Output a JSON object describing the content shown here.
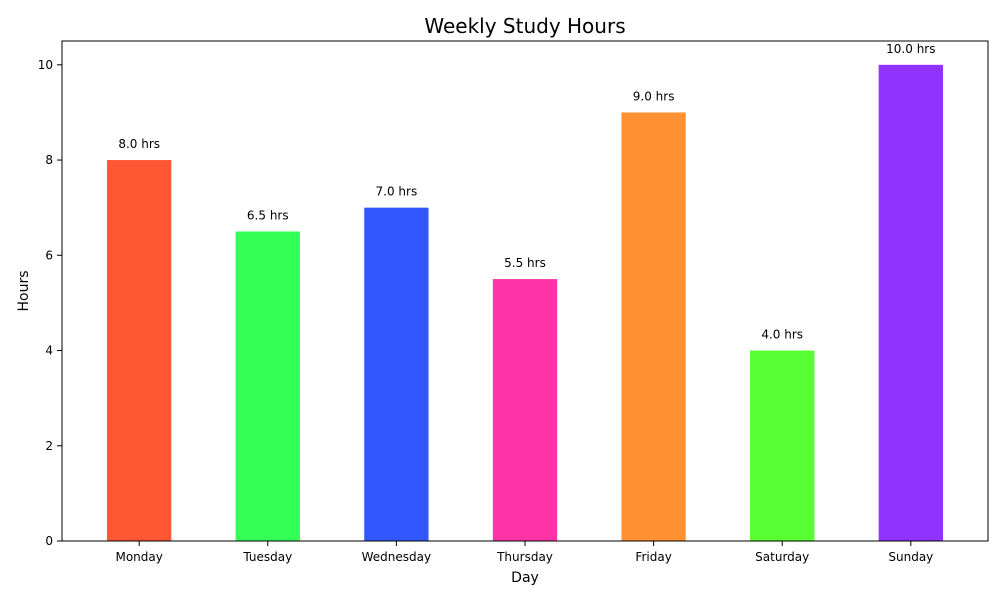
{
  "chart_data": {
    "type": "bar",
    "title": "Weekly Study Hours",
    "xlabel": "Day",
    "ylabel": "Hours",
    "categories": [
      "Monday",
      "Tuesday",
      "Wednesday",
      "Thursday",
      "Friday",
      "Saturday",
      "Sunday"
    ],
    "values": [
      8.0,
      6.5,
      7.0,
      5.5,
      9.0,
      4.0,
      10.0
    ],
    "data_labels": [
      "8.0 hrs",
      "6.5 hrs",
      "7.0 hrs",
      "5.5 hrs",
      "9.0 hrs",
      "4.0 hrs",
      "10.0 hrs"
    ],
    "colors": [
      "#FF5733",
      "#33FF57",
      "#3357FF",
      "#FF33A8",
      "#FF9133",
      "#57FF33",
      "#9133FF"
    ],
    "ylim": [
      0,
      10.5
    ],
    "yticks": [
      0,
      2,
      4,
      6,
      8,
      10
    ],
    "grid": false,
    "legend": "none"
  }
}
